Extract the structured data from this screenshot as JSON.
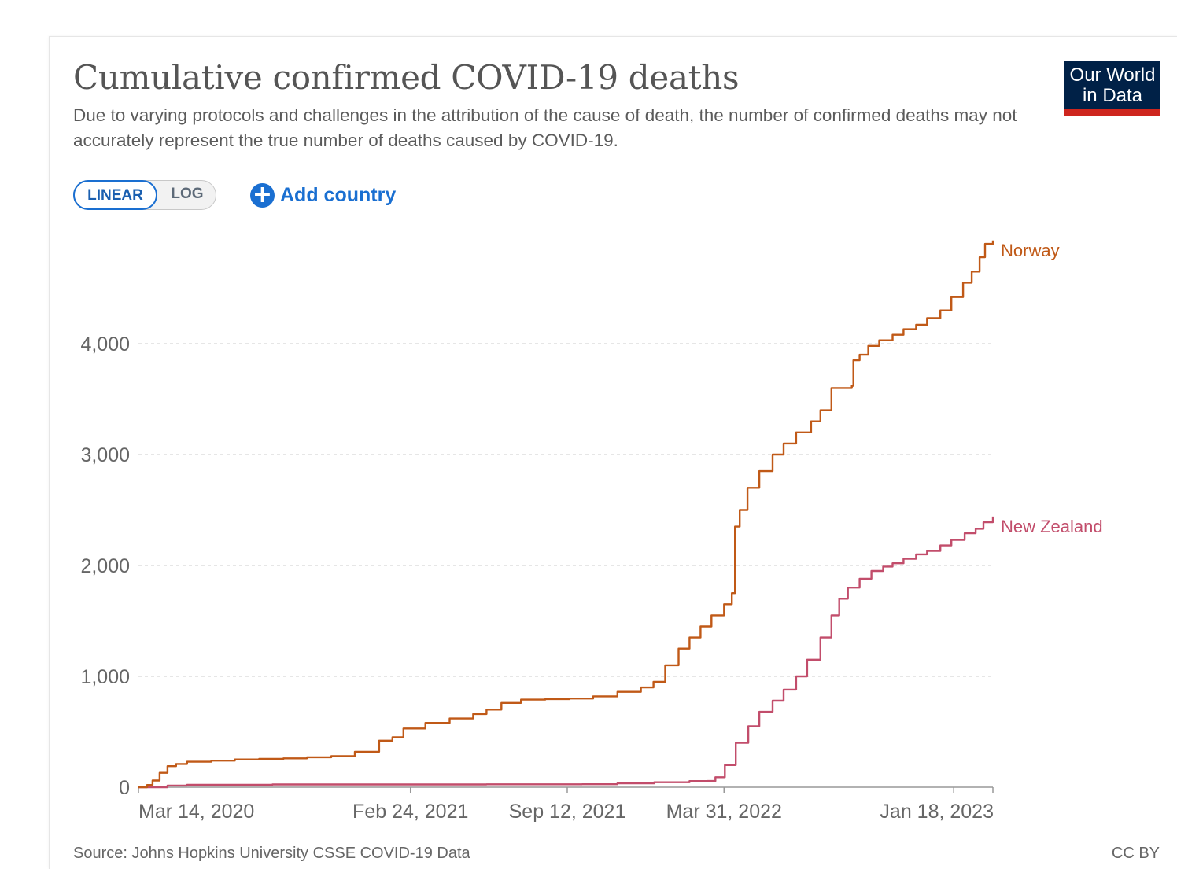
{
  "header": {
    "title": "Cumulative confirmed COVID-19 deaths",
    "subtitle": "Due to varying protocols and challenges in the attribution of the cause of death, the number of confirmed deaths may not accurately represent the true number of deaths caused by COVID-19."
  },
  "logo": {
    "line1": "Our World",
    "line2": "in Data",
    "bg_color": "#002147",
    "accent_color": "#ce261e"
  },
  "controls": {
    "linear_label": "LINEAR",
    "log_label": "LOG",
    "selected": "LINEAR",
    "add_country_label": "Add country",
    "add_icon": "plus-circle-icon"
  },
  "footer": {
    "source": "Source: Johns Hopkins University CSSE COVID-19 Data",
    "license": "CC BY"
  },
  "chart_data": {
    "type": "line",
    "xaxis_type": "date",
    "x_ticks": [
      "Mar 14, 2020",
      "Feb 24, 2021",
      "Sep 12, 2021",
      "Mar 31, 2022",
      "Jan 18, 2023"
    ],
    "y_ticks": [
      0,
      1000,
      2000,
      3000,
      4000
    ],
    "y_tick_labels": [
      "0",
      "1,000",
      "2,000",
      "3,000",
      "4,000"
    ],
    "xlim": [
      "2020-03-14",
      "2023-03-09"
    ],
    "ylim": [
      0,
      4950
    ],
    "grid": "horizontal-dashed",
    "legend": "line-end labels",
    "series": [
      {
        "name": "Norway",
        "color": "#c05917",
        "points": [
          [
            "2020-03-14",
            0
          ],
          [
            "2020-03-25",
            20
          ],
          [
            "2020-04-01",
            60
          ],
          [
            "2020-04-10",
            130
          ],
          [
            "2020-04-20",
            190
          ],
          [
            "2020-05-01",
            210
          ],
          [
            "2020-05-15",
            230
          ],
          [
            "2020-06-15",
            240
          ],
          [
            "2020-07-15",
            250
          ],
          [
            "2020-08-15",
            255
          ],
          [
            "2020-09-15",
            260
          ],
          [
            "2020-10-15",
            270
          ],
          [
            "2020-11-15",
            280
          ],
          [
            "2020-12-15",
            320
          ],
          [
            "2021-01-15",
            420
          ],
          [
            "2021-02-01",
            450
          ],
          [
            "2021-02-15",
            530
          ],
          [
            "2021-03-15",
            580
          ],
          [
            "2021-04-15",
            620
          ],
          [
            "2021-05-15",
            660
          ],
          [
            "2021-06-01",
            700
          ],
          [
            "2021-06-20",
            760
          ],
          [
            "2021-07-15",
            790
          ],
          [
            "2021-08-15",
            795
          ],
          [
            "2021-09-15",
            800
          ],
          [
            "2021-10-15",
            820
          ],
          [
            "2021-11-15",
            860
          ],
          [
            "2021-12-15",
            900
          ],
          [
            "2021-12-31",
            950
          ],
          [
            "2022-01-15",
            1100
          ],
          [
            "2022-02-01",
            1250
          ],
          [
            "2022-02-15",
            1350
          ],
          [
            "2022-03-01",
            1450
          ],
          [
            "2022-03-15",
            1550
          ],
          [
            "2022-03-31",
            1650
          ],
          [
            "2022-04-10",
            1750
          ],
          [
            "2022-04-14",
            2350
          ],
          [
            "2022-04-20",
            2500
          ],
          [
            "2022-04-30",
            2700
          ],
          [
            "2022-05-15",
            2850
          ],
          [
            "2022-06-01",
            3000
          ],
          [
            "2022-06-15",
            3100
          ],
          [
            "2022-07-01",
            3200
          ],
          [
            "2022-07-20",
            3300
          ],
          [
            "2022-08-01",
            3400
          ],
          [
            "2022-08-15",
            3600
          ],
          [
            "2022-09-10",
            3620
          ],
          [
            "2022-09-12",
            3850
          ],
          [
            "2022-09-20",
            3900
          ],
          [
            "2022-10-01",
            3980
          ],
          [
            "2022-10-15",
            4030
          ],
          [
            "2022-11-01",
            4080
          ],
          [
            "2022-11-15",
            4130
          ],
          [
            "2022-12-01",
            4170
          ],
          [
            "2022-12-15",
            4230
          ],
          [
            "2023-01-01",
            4300
          ],
          [
            "2023-01-15",
            4420
          ],
          [
            "2023-01-30",
            4550
          ],
          [
            "2023-02-10",
            4650
          ],
          [
            "2023-02-20",
            4780
          ],
          [
            "2023-02-27",
            4900
          ],
          [
            "2023-03-09",
            4930
          ]
        ]
      },
      {
        "name": "New Zealand",
        "color": "#c24d6b",
        "points": [
          [
            "2020-03-14",
            0
          ],
          [
            "2020-04-20",
            15
          ],
          [
            "2020-05-15",
            22
          ],
          [
            "2020-06-01",
            22
          ],
          [
            "2020-09-01",
            25
          ],
          [
            "2021-01-01",
            25
          ],
          [
            "2021-06-01",
            26
          ],
          [
            "2021-10-01",
            27
          ],
          [
            "2021-11-15",
            35
          ],
          [
            "2022-01-01",
            45
          ],
          [
            "2022-02-15",
            55
          ],
          [
            "2022-03-10",
            56
          ],
          [
            "2022-03-20",
            90
          ],
          [
            "2022-04-01",
            200
          ],
          [
            "2022-04-15",
            400
          ],
          [
            "2022-05-01",
            550
          ],
          [
            "2022-05-15",
            680
          ],
          [
            "2022-06-01",
            780
          ],
          [
            "2022-06-15",
            880
          ],
          [
            "2022-07-01",
            1000
          ],
          [
            "2022-07-15",
            1150
          ],
          [
            "2022-08-01",
            1350
          ],
          [
            "2022-08-15",
            1550
          ],
          [
            "2022-08-25",
            1700
          ],
          [
            "2022-09-05",
            1800
          ],
          [
            "2022-09-20",
            1880
          ],
          [
            "2022-10-05",
            1950
          ],
          [
            "2022-10-20",
            1990
          ],
          [
            "2022-11-01",
            2020
          ],
          [
            "2022-11-15",
            2060
          ],
          [
            "2022-12-01",
            2100
          ],
          [
            "2022-12-15",
            2130
          ],
          [
            "2023-01-01",
            2180
          ],
          [
            "2023-01-15",
            2230
          ],
          [
            "2023-02-01",
            2290
          ],
          [
            "2023-02-15",
            2330
          ],
          [
            "2023-02-25",
            2390
          ],
          [
            "2023-03-09",
            2440
          ]
        ]
      }
    ]
  }
}
